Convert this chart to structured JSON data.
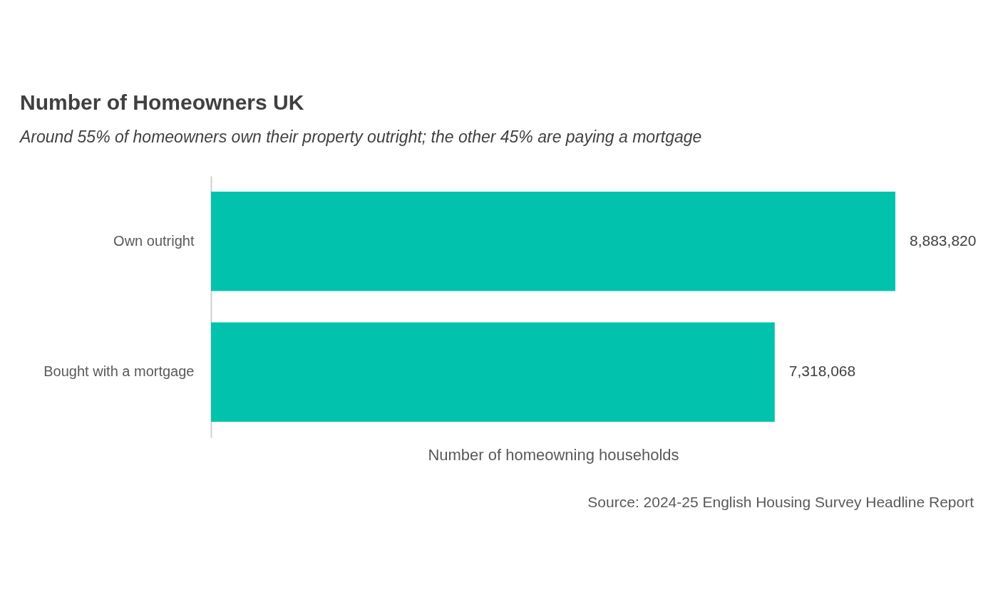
{
  "chart_data": {
    "type": "bar",
    "orientation": "horizontal",
    "title": "Number of Homeowners UK",
    "subtitle": "Around 55% of homeowners own their property outright; the other 45% are paying a mortgage",
    "xlabel": "Number of homeowning households",
    "categories": [
      "Own outright",
      "Bought with a mortgage"
    ],
    "values": [
      8883820,
      7318068
    ],
    "color": "#00c2ad",
    "value_labels": [
      "8,883,820",
      "7,318,068"
    ],
    "tick_labels": "y",
    "annotations": [
      "Source: 2024-25 English Housing Survey Headline Report"
    ]
  }
}
